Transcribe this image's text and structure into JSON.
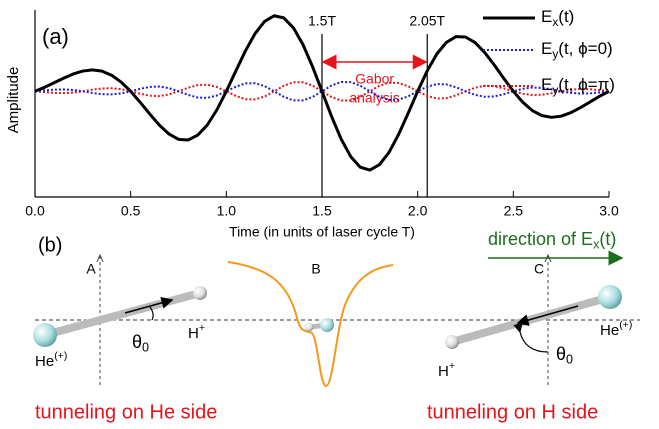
{
  "chart_data": {
    "type": "line",
    "panel_label": "(a)",
    "y_label": "Amplitude",
    "x_label": "Time (in units of laser cycle T)",
    "xlim": [
      0,
      3
    ],
    "ylim": [
      -1.3,
      1.0
    ],
    "xticks": [
      {
        "value": 0,
        "label": "0.0"
      },
      0.5,
      {
        "value": 1,
        "label": "1.0"
      },
      1.5,
      {
        "value": 2,
        "label": "2.0"
      },
      2.5,
      {
        "value": 3,
        "label": "3.0"
      }
    ],
    "legend": "upper right",
    "vlines": [
      {
        "x": 1.5,
        "label": "1.5T"
      },
      {
        "x": 2.05,
        "label": "2.05T"
      }
    ],
    "span_label": [
      "Gabor",
      "analysis"
    ],
    "span_color": "#e8141b",
    "x": [
      0,
      0.05,
      0.1,
      0.15,
      0.2,
      0.25,
      0.3,
      0.35,
      0.4,
      0.45,
      0.5,
      0.55,
      0.6,
      0.65,
      0.7,
      0.75,
      0.8,
      0.85,
      0.9,
      0.95,
      1,
      1.05,
      1.1,
      1.15,
      1.2,
      1.25,
      1.3,
      1.35,
      1.4,
      1.45,
      1.5,
      1.55,
      1.6,
      1.65,
      1.7,
      1.75,
      1.8,
      1.85,
      1.9,
      1.95,
      2,
      2.05,
      2.1,
      2.15,
      2.2,
      2.25,
      2.3,
      2.35,
      2.4,
      2.45,
      2.5,
      2.55,
      2.6,
      2.65,
      2.7,
      2.75,
      2.8,
      2.85,
      2.9,
      2.95,
      3
    ],
    "series": [
      {
        "name": "Ex(t)",
        "color": "#000000",
        "line_style": "solid",
        "line_width": 3,
        "values": [
          0,
          0.049,
          0.105,
          0.162,
          0.213,
          0.249,
          0.263,
          0.248,
          0.198,
          0.114,
          0,
          -0.136,
          -0.28,
          -0.416,
          -0.525,
          -0.591,
          -0.599,
          -0.54,
          -0.416,
          -0.23,
          0,
          0.252,
          0.498,
          0.709,
          0.86,
          0.929,
          0.903,
          0.783,
          0.577,
          0.307,
          0,
          -0.309,
          -0.587,
          -0.803,
          -0.934,
          -0.968,
          -0.903,
          -0.752,
          -0.532,
          -0.271,
          0,
          0.252,
          0.459,
          0.602,
          0.672,
          0.668,
          0.599,
          0.478,
          0.325,
          0.159,
          0,
          -0.136,
          -0.238,
          -0.299,
          -0.32,
          -0.306,
          -0.263,
          -0.201,
          -0.132,
          -0.062,
          0
        ]
      },
      {
        "name": "Ey(t, ϕ=0)",
        "color": "#1c1cd4",
        "line_style": "dotted",
        "line_width": 2,
        "values": [
          0,
          0.011,
          0.02,
          0.023,
          0.016,
          0,
          -0.02,
          -0.035,
          -0.038,
          -0.026,
          0,
          0.031,
          0.054,
          0.059,
          0.039,
          0,
          -0.044,
          -0.076,
          -0.081,
          -0.053,
          0,
          0.057,
          0.097,
          0.1,
          0.064,
          0,
          -0.067,
          -0.111,
          -0.112,
          -0.07,
          0,
          0.071,
          0.114,
          0.113,
          0.069,
          0,
          -0.067,
          -0.106,
          -0.103,
          -0.062,
          0,
          0.057,
          0.089,
          0.085,
          0.05,
          0,
          -0.044,
          -0.067,
          -0.063,
          -0.036,
          0,
          0.031,
          0.046,
          0.042,
          0.024,
          0,
          -0.02,
          -0.028,
          -0.026,
          -0.014,
          0
        ]
      },
      {
        "name": "Ey(t, ϕ=π)",
        "color": "#e8141b",
        "line_style": "dotted",
        "line_width": 2,
        "values": [
          0,
          -0.011,
          -0.02,
          -0.023,
          -0.016,
          0,
          0.02,
          0.035,
          0.038,
          0.026,
          0,
          -0.031,
          -0.054,
          -0.059,
          -0.039,
          0,
          0.044,
          0.076,
          0.081,
          0.053,
          0,
          -0.057,
          -0.097,
          -0.1,
          -0.064,
          0,
          0.067,
          0.111,
          0.112,
          0.07,
          0,
          -0.071,
          -0.114,
          -0.113,
          -0.069,
          0,
          0.067,
          0.106,
          0.103,
          0.062,
          0,
          -0.057,
          -0.089,
          -0.085,
          -0.05,
          0,
          0.044,
          0.067,
          0.063,
          0.036,
          0,
          -0.031,
          -0.046,
          -0.042,
          -0.024,
          0,
          0.02,
          0.028,
          0.026,
          0.014,
          0
        ]
      }
    ]
  },
  "panel_b": {
    "panel_label": "(b)",
    "axis_labels": [
      "A",
      "B",
      "C"
    ],
    "field_direction": "direction of Ex(t)",
    "left": {
      "heavy": "He(+)",
      "light": "H+",
      "angle": "θ0",
      "caption": "tunneling on He side"
    },
    "right": {
      "heavy": "He(+)",
      "light": "H+",
      "angle": "θ0",
      "caption": "tunneling on H side"
    }
  }
}
